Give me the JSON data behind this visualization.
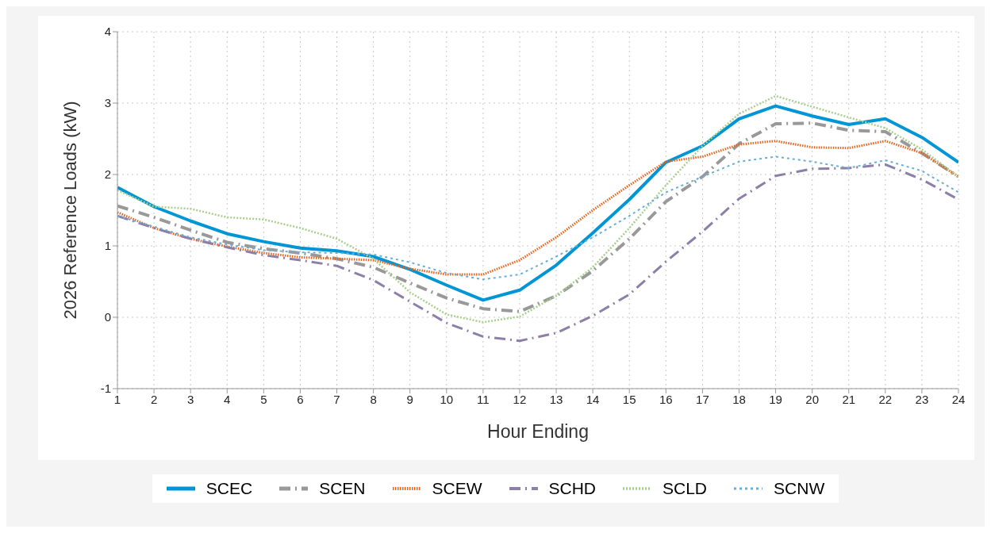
{
  "chart_data": {
    "type": "line",
    "xlabel": "Hour Ending",
    "ylabel": "2026 Reference Loads (kW)",
    "x": [
      1,
      2,
      3,
      4,
      5,
      6,
      7,
      8,
      9,
      10,
      11,
      12,
      13,
      14,
      15,
      16,
      17,
      18,
      19,
      20,
      21,
      22,
      23,
      24
    ],
    "xlim": [
      1,
      24
    ],
    "xticks": [
      1,
      2,
      3,
      4,
      5,
      6,
      7,
      8,
      9,
      10,
      11,
      12,
      13,
      14,
      15,
      16,
      17,
      18,
      19,
      20,
      21,
      22,
      23,
      24
    ],
    "ylim": [
      -1,
      4
    ],
    "yticks": [
      -1,
      0,
      1,
      2,
      3,
      4
    ],
    "grid": true,
    "legend": "bottom",
    "marker": "none",
    "series": [
      {
        "name": "SCEC",
        "color": "#0096d6",
        "line_style": "solid",
        "values": [
          1.82,
          1.55,
          1.35,
          1.17,
          1.06,
          0.97,
          0.93,
          0.85,
          0.67,
          0.45,
          0.24,
          0.38,
          0.73,
          1.18,
          1.65,
          2.17,
          2.4,
          2.78,
          2.96,
          2.82,
          2.7,
          2.78,
          2.52,
          2.17
        ]
      },
      {
        "name": "SCEN",
        "color": "#999999",
        "line_style": "dashed",
        "values": [
          1.56,
          1.4,
          1.22,
          1.05,
          0.96,
          0.9,
          0.82,
          0.7,
          0.48,
          0.27,
          0.12,
          0.08,
          0.3,
          0.65,
          1.1,
          1.62,
          1.97,
          2.43,
          2.71,
          2.72,
          2.62,
          2.6,
          2.3,
          1.97
        ]
      },
      {
        "name": "SCEW",
        "color": "#e8651e",
        "line_style": "dotted",
        "values": [
          1.47,
          1.25,
          1.1,
          0.99,
          0.9,
          0.84,
          0.82,
          0.8,
          0.68,
          0.6,
          0.6,
          0.8,
          1.12,
          1.5,
          1.85,
          2.18,
          2.25,
          2.42,
          2.47,
          2.38,
          2.37,
          2.47,
          2.3,
          1.97
        ]
      },
      {
        "name": "SCHD",
        "color": "#8c7fa8",
        "line_style": "dashed",
        "values": [
          1.42,
          1.25,
          1.1,
          0.98,
          0.87,
          0.8,
          0.72,
          0.52,
          0.22,
          -0.08,
          -0.27,
          -0.33,
          -0.22,
          0.02,
          0.32,
          0.78,
          1.2,
          1.66,
          1.98,
          2.08,
          2.09,
          2.14,
          1.93,
          1.65
        ]
      },
      {
        "name": "SCLD",
        "color": "#a8d08d",
        "line_style": "dotted",
        "values": [
          1.78,
          1.55,
          1.52,
          1.4,
          1.37,
          1.25,
          1.1,
          0.82,
          0.35,
          0.04,
          -0.07,
          0.01,
          0.3,
          0.7,
          1.25,
          1.85,
          2.4,
          2.85,
          3.1,
          2.95,
          2.8,
          2.65,
          2.35,
          1.97
        ]
      },
      {
        "name": "SCNW",
        "color": "#6aaed6",
        "line_style": "dotted",
        "values": [
          1.42,
          1.27,
          1.12,
          1.02,
          0.94,
          0.91,
          0.9,
          0.88,
          0.77,
          0.62,
          0.53,
          0.6,
          0.85,
          1.12,
          1.42,
          1.75,
          1.97,
          2.18,
          2.25,
          2.18,
          2.09,
          2.2,
          2.05,
          1.75
        ]
      }
    ]
  }
}
